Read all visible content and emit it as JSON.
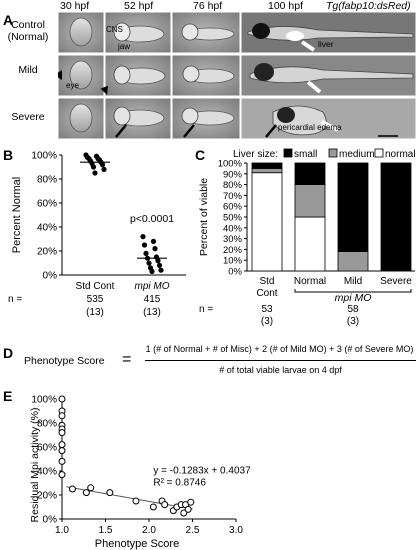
{
  "panelA": {
    "letter": "A",
    "timepoints": [
      "30 hpf",
      "52 hpf",
      "76 hpf",
      "100 hpf"
    ],
    "transgene": "Tg(fabp10:dsRed)",
    "rows": [
      {
        "label1": "Control",
        "label2": "(Normal)"
      },
      {
        "label1": "Mild",
        "label2": ""
      },
      {
        "label1": "Severe",
        "label2": ""
      }
    ],
    "annotations": {
      "jaw": "jaw",
      "cns": "CNS",
      "liver": "liver",
      "eye": "eye",
      "edema": "pericardial edema"
    }
  },
  "panelB": {
    "letter": "B",
    "ylabel": "Percent Normal",
    "yticks": [
      "0%",
      "20%",
      "40%",
      "60%",
      "80%",
      "100%"
    ],
    "categories": [
      "Std Cont",
      "mpi MO"
    ],
    "pvalue": "p<0.0001",
    "n_label": "n =",
    "n_values": [
      "535",
      "415"
    ],
    "n_groups": [
      "(13)",
      "(13)"
    ]
  },
  "panelC": {
    "letter": "C",
    "legend_title": "Liver size:",
    "legend": [
      "small",
      "medium",
      "normal"
    ],
    "ylabel": "Percent of viable",
    "yticks": [
      "0%",
      "10%",
      "20%",
      "30%",
      "40%",
      "50%",
      "60%",
      "70%",
      "80%",
      "90%",
      "100%"
    ],
    "categories": [
      "Std Cont",
      "Normal",
      "Mild",
      "Severe"
    ],
    "cat_line2": "Cont",
    "mpi_label": "mpi MO",
    "n_label": "n =",
    "n_values": [
      "53",
      "58"
    ],
    "n_groups": [
      "(3)",
      "(3)"
    ]
  },
  "panelD": {
    "letter": "D",
    "label": "Phenotype Score",
    "equals": "=",
    "numerator": "1 (# of Normal + # of Misc) + 2 (# of Mild MO) + 3 (# of Severe MO)",
    "denominator": "# of total viable larvae on 4 dpf"
  },
  "panelE": {
    "letter": "E",
    "ylabel": "Residual Mpi activity (%)",
    "xlabel": "Phenotype Score",
    "yticks": [
      "0%",
      "20%",
      "40%",
      "60%",
      "80%",
      "100%"
    ],
    "xticks": [
      "1.0",
      "1.5",
      "2.0",
      "2.5",
      "3.0"
    ],
    "equation": "y = -0.1283x + 0.4037",
    "r2": "R² = 0.8746"
  },
  "chart_data": [
    {
      "type": "scatter",
      "panel": "B",
      "categories": [
        "Std Cont",
        "mpi MO"
      ],
      "ylabel": "Percent Normal",
      "ylim": [
        0,
        100
      ],
      "series": [
        {
          "name": "Std Cont",
          "values": [
            100,
            99,
            98,
            97,
            97,
            96,
            95,
            94,
            93,
            92,
            90,
            88,
            85
          ],
          "mean": 94
        },
        {
          "name": "mpi MO",
          "values": [
            32,
            28,
            25,
            22,
            18,
            15,
            14,
            12,
            10,
            8,
            6,
            4,
            3
          ],
          "mean": 14
        }
      ]
    },
    {
      "type": "bar",
      "panel": "C",
      "stacked": true,
      "categories": [
        "Std Cont",
        "Normal",
        "Mild",
        "Severe"
      ],
      "ylabel": "Percent of viable",
      "ylim": [
        0,
        100
      ],
      "series": [
        {
          "name": "small",
          "color": "#000000",
          "values": [
            5,
            20,
            82,
            100
          ]
        },
        {
          "name": "medium",
          "color": "#999999",
          "values": [
            4,
            30,
            18,
            0
          ]
        },
        {
          "name": "normal",
          "color": "#ffffff",
          "values": [
            91,
            50,
            0,
            0
          ]
        }
      ]
    },
    {
      "type": "scatter",
      "panel": "E",
      "xlabel": "Phenotype Score",
      "ylabel": "Residual Mpi activity (%)",
      "xlim": [
        1.0,
        3.0
      ],
      "ylim": [
        0,
        100
      ],
      "points": [
        [
          1.0,
          100
        ],
        [
          1.0,
          90
        ],
        [
          1.0,
          86
        ],
        [
          1.0,
          78
        ],
        [
          1.0,
          75
        ],
        [
          1.0,
          72
        ],
        [
          1.0,
          62
        ],
        [
          1.0,
          57
        ],
        [
          1.0,
          48
        ],
        [
          1.0,
          37
        ],
        [
          1.12,
          25
        ],
        [
          1.28,
          22
        ],
        [
          1.33,
          26
        ],
        [
          1.55,
          22
        ],
        [
          1.85,
          15
        ],
        [
          2.05,
          10
        ],
        [
          2.15,
          15
        ],
        [
          2.18,
          12
        ],
        [
          2.28,
          7
        ],
        [
          2.32,
          10
        ],
        [
          2.37,
          12
        ],
        [
          2.4,
          5
        ],
        [
          2.42,
          12
        ],
        [
          2.45,
          8
        ],
        [
          2.48,
          14
        ]
      ],
      "trendline": {
        "slope": -0.1283,
        "intercept": 0.4037,
        "x": [
          1.0,
          2.5
        ]
      }
    }
  ]
}
